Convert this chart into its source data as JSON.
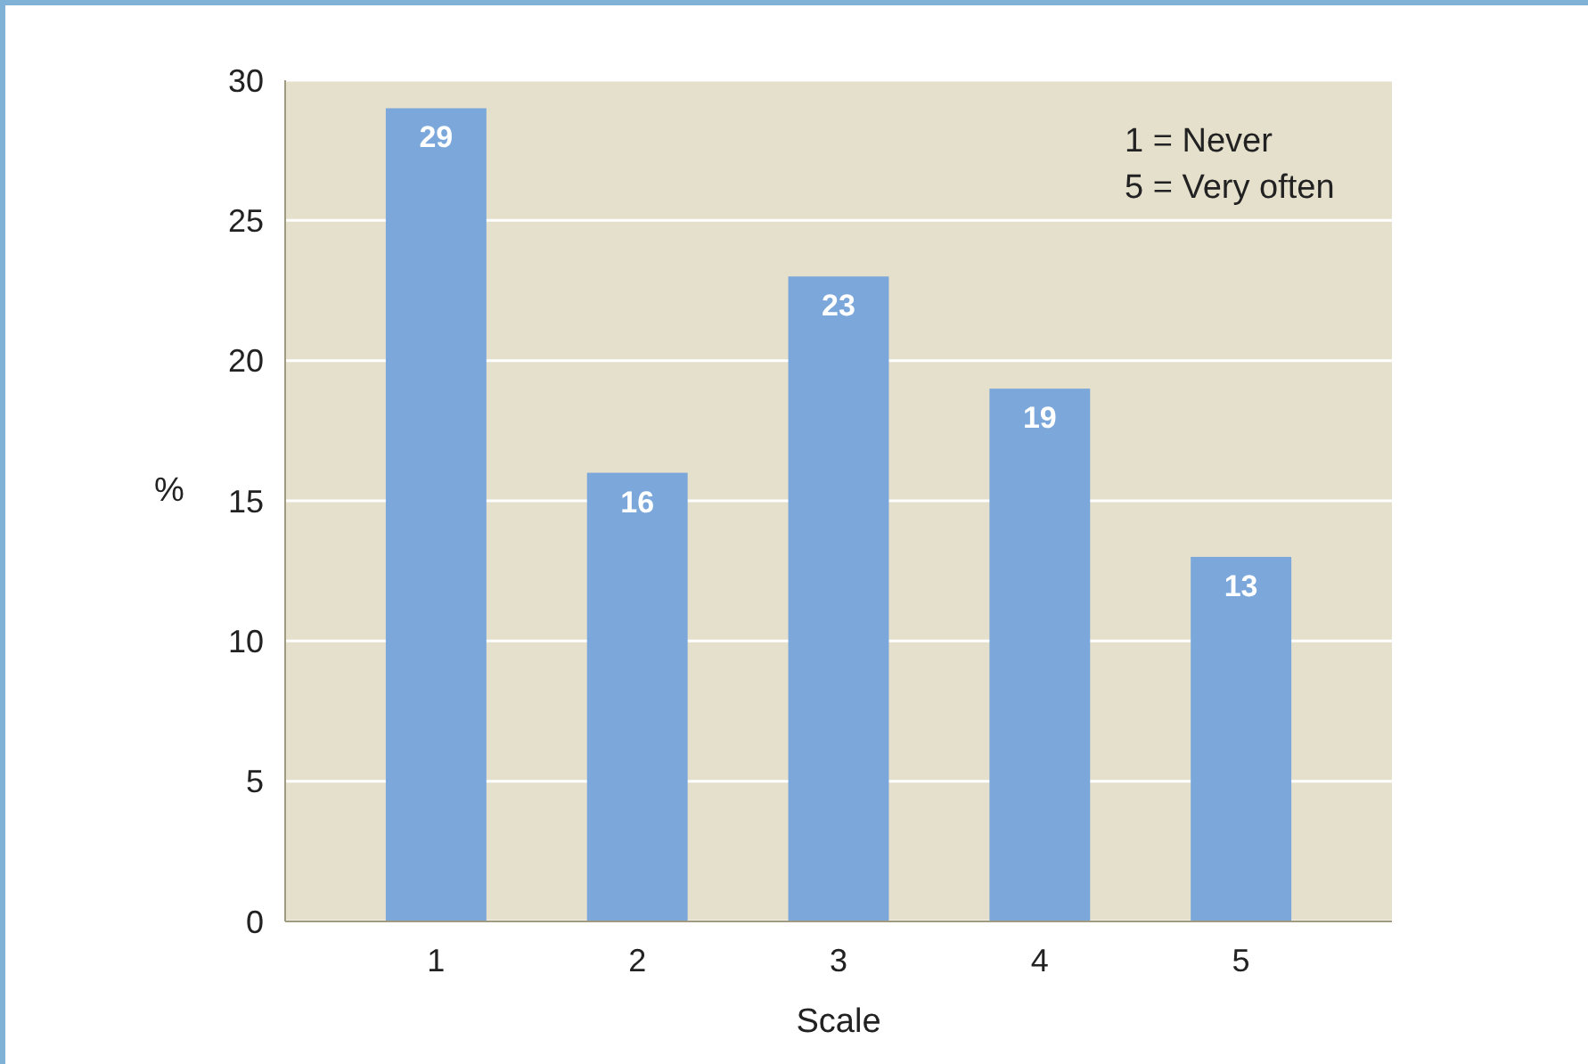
{
  "chart_data": {
    "type": "bar",
    "xlabel": "Scale",
    "ylabel": "%",
    "categories": [
      "1",
      "2",
      "3",
      "4",
      "5"
    ],
    "values": [
      29,
      16,
      23,
      19,
      13
    ],
    "color": "#7ba7da",
    "ylim": [
      0,
      30
    ],
    "yticks": [
      0,
      5,
      10,
      15,
      20,
      25,
      30
    ],
    "grid": "y",
    "data_labels": true,
    "annotations": [
      "1 = Never",
      "5 = Very often"
    ]
  }
}
